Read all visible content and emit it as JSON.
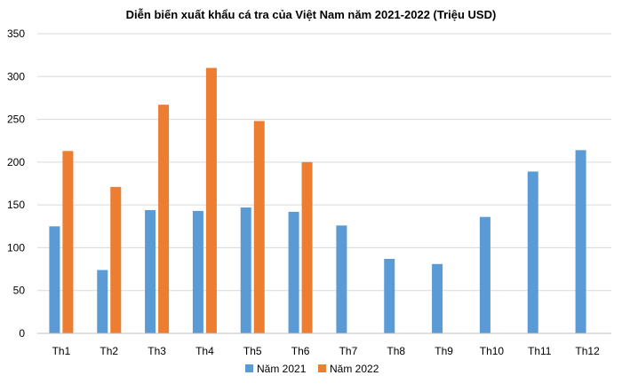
{
  "chart_data": {
    "type": "bar",
    "title": "Diễn biến xuất khẩu cá tra của Việt Nam năm 2021-2022 (Triệu USD)",
    "xlabel": "",
    "ylabel": "",
    "categories": [
      "Th1",
      "Th2",
      "Th3",
      "Th4",
      "Th5",
      "Th6",
      "Th7",
      "Th8",
      "Th9",
      "Th10",
      "Th11",
      "Th12"
    ],
    "series": [
      {
        "name": "Năm 2021",
        "color": "#5b9bd5",
        "values": [
          125,
          74,
          144,
          143,
          147,
          142,
          126,
          87,
          81,
          136,
          189,
          214
        ]
      },
      {
        "name": "Năm 2022",
        "color": "#ed7d31",
        "values": [
          213,
          171,
          267,
          310,
          248,
          200,
          null,
          null,
          null,
          null,
          null,
          null
        ]
      }
    ],
    "ylim": [
      0,
      350
    ],
    "yticks": [
      0,
      50,
      100,
      150,
      200,
      250,
      300,
      350
    ],
    "grid": true,
    "legend_position": "bottom"
  }
}
